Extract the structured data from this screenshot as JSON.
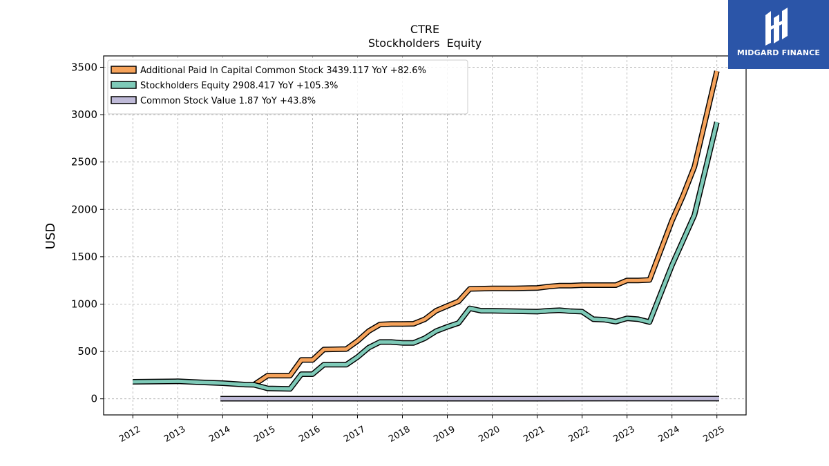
{
  "chart_data": {
    "type": "line",
    "title": "CTRE",
    "subtitle": "Stockholders  Equity",
    "ylabel": "USD",
    "xlabel": "",
    "ylim": [
      -170,
      3620
    ],
    "xlim": [
      2011.35,
      2025.65
    ],
    "grid": true,
    "legend_position": "top-left",
    "yticks": [
      0,
      500,
      1000,
      1500,
      2000,
      2500,
      3000,
      3500
    ],
    "xticks": [
      2012,
      2013,
      2014,
      2015,
      2016,
      2017,
      2018,
      2019,
      2020,
      2021,
      2022,
      2023,
      2024,
      2025
    ],
    "series": [
      {
        "name": "Additional Paid In Capital Common Stock",
        "legend_label": "Additional Paid In Capital Common Stock  3439.117 YoY +82.6%",
        "color": "#f6a35b",
        "points": [
          [
            2014.7,
            150
          ],
          [
            2015.0,
            245
          ],
          [
            2015.5,
            245
          ],
          [
            2015.75,
            410
          ],
          [
            2016.0,
            410
          ],
          [
            2016.25,
            520
          ],
          [
            2016.75,
            525
          ],
          [
            2017.0,
            610
          ],
          [
            2017.25,
            715
          ],
          [
            2017.5,
            785
          ],
          [
            2017.75,
            790
          ],
          [
            2018.0,
            790
          ],
          [
            2018.25,
            792
          ],
          [
            2018.5,
            840
          ],
          [
            2018.75,
            930
          ],
          [
            2019.0,
            980
          ],
          [
            2019.25,
            1030
          ],
          [
            2019.5,
            1160
          ],
          [
            2020.0,
            1165
          ],
          [
            2020.5,
            1165
          ],
          [
            2021.0,
            1170
          ],
          [
            2021.25,
            1185
          ],
          [
            2021.5,
            1195
          ],
          [
            2021.75,
            1195
          ],
          [
            2022.0,
            1200
          ],
          [
            2022.5,
            1200
          ],
          [
            2022.75,
            1200
          ],
          [
            2023.0,
            1250
          ],
          [
            2023.25,
            1250
          ],
          [
            2023.5,
            1255
          ],
          [
            2024.0,
            1880
          ],
          [
            2024.25,
            2150
          ],
          [
            2024.5,
            2450
          ],
          [
            2025.0,
            3460
          ]
        ]
      },
      {
        "name": "Stockholders Equity",
        "legend_label": "Stockholders Equity  2908.417 YoY +105.3%",
        "color": "#7ecab8",
        "points": [
          [
            2012.0,
            180
          ],
          [
            2013.0,
            185
          ],
          [
            2013.5,
            175
          ],
          [
            2014.0,
            165
          ],
          [
            2014.5,
            150
          ],
          [
            2014.7,
            148
          ],
          [
            2015.0,
            110
          ],
          [
            2015.5,
            105
          ],
          [
            2015.75,
            260
          ],
          [
            2016.0,
            260
          ],
          [
            2016.25,
            360
          ],
          [
            2016.75,
            360
          ],
          [
            2017.0,
            440
          ],
          [
            2017.25,
            540
          ],
          [
            2017.5,
            600
          ],
          [
            2017.75,
            600
          ],
          [
            2018.0,
            590
          ],
          [
            2018.25,
            590
          ],
          [
            2018.5,
            640
          ],
          [
            2018.75,
            715
          ],
          [
            2019.0,
            760
          ],
          [
            2019.25,
            800
          ],
          [
            2019.5,
            955
          ],
          [
            2019.75,
            930
          ],
          [
            2020.0,
            930
          ],
          [
            2020.5,
            925
          ],
          [
            2021.0,
            920
          ],
          [
            2021.25,
            930
          ],
          [
            2021.5,
            935
          ],
          [
            2021.75,
            925
          ],
          [
            2022.0,
            920
          ],
          [
            2022.25,
            840
          ],
          [
            2022.5,
            835
          ],
          [
            2022.75,
            815
          ],
          [
            2023.0,
            850
          ],
          [
            2023.25,
            840
          ],
          [
            2023.5,
            810
          ],
          [
            2024.0,
            1410
          ],
          [
            2024.5,
            1940
          ],
          [
            2025.0,
            2920
          ]
        ]
      },
      {
        "name": "Common Stock Value",
        "legend_label": "Common Stock Value  1.87 YoY +43.8%",
        "color": "#bfbad8",
        "points": [
          [
            2013.95,
            1.3
          ],
          [
            2025.05,
            1.87
          ]
        ]
      }
    ]
  },
  "logo": {
    "text": "MIDGARD FINANCE",
    "bg_color": "#2b55a8"
  }
}
